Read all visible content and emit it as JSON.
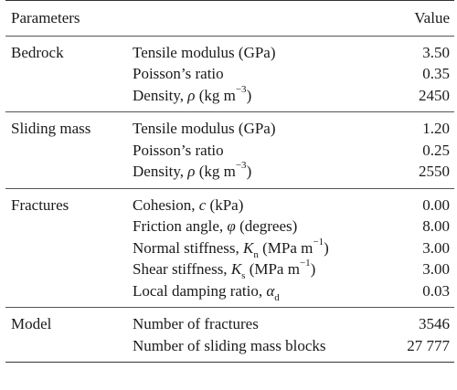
{
  "header": {
    "parameters_label": "Parameters",
    "value_label": "Value"
  },
  "groups": [
    {
      "name": "Bedrock",
      "rows": [
        {
          "label": "Tensile modulus (GPa)",
          "value": "3.50"
        },
        {
          "label_pre": "Poisson’s ratio",
          "value": "0.35"
        },
        {
          "label_pre": "Density, ",
          "symbol": "ρ",
          "label_post": " (kg m",
          "exponent": "−3",
          "label_end": ")",
          "value": "2450"
        }
      ]
    },
    {
      "name": "Sliding mass",
      "rows": [
        {
          "label": "Tensile modulus (GPa)",
          "value": "1.20"
        },
        {
          "label": "Poisson’s ratio",
          "value": "0.25"
        },
        {
          "label_pre": "Density, ",
          "symbol": "ρ",
          "label_post": " (kg m",
          "exponent": "−3",
          "label_end": ")",
          "value": "2550"
        }
      ]
    },
    {
      "name": "Fractures",
      "rows": [
        {
          "label_pre": "Cohesion, ",
          "symbol": "c",
          "label_post": " (kPa)",
          "value": "0.00"
        },
        {
          "label_pre": "Friction angle, ",
          "symbol": "φ",
          "label_post": " (degrees)",
          "value": "8.00"
        },
        {
          "label_pre": "Normal stiffness, ",
          "symbol": "K",
          "subscript": "n",
          "label_post": " (MPa m",
          "exponent": "−1",
          "label_end": ")",
          "value": "3.00"
        },
        {
          "label_pre": "Shear stiffness, ",
          "symbol": "K",
          "subscript": "s",
          "label_post": " (MPa m",
          "exponent": "−1",
          "label_end": ")",
          "value": "3.00"
        },
        {
          "label_pre": "Local damping ratio, ",
          "symbol": "α",
          "subscript": "d",
          "value": "0.03"
        }
      ]
    },
    {
      "name": "Model",
      "rows": [
        {
          "label": "Number of fractures",
          "value": "3546"
        },
        {
          "label": "Number of sliding mass blocks",
          "value": "27 777"
        }
      ]
    }
  ]
}
